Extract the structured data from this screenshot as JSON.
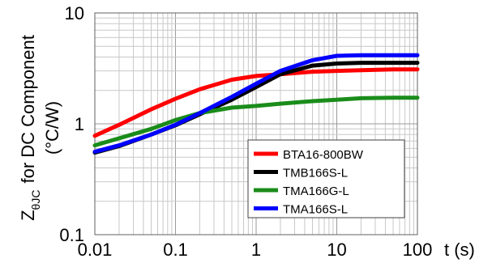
{
  "chart_data": {
    "type": "line",
    "x_scale": "log",
    "y_scale": "log",
    "xlim": [
      0.01,
      100
    ],
    "ylim": [
      0.1,
      10
    ],
    "grid": true,
    "legend_position": "bottom-right",
    "xlabel": "t (s)",
    "ylabel_main": "for DC Component",
    "ylabel_symbol": "Z",
    "ylabel_subscript": "θJC",
    "ylabel_unit": "(°C/W)",
    "x_tick_labels": [
      "0.01",
      "0.1",
      "1",
      "10",
      "100"
    ],
    "y_tick_labels": [
      "0.1",
      "1",
      "10"
    ],
    "series": [
      {
        "name": "BTA16-800BW",
        "color": "#ff0000",
        "x": [
          0.01,
          0.02,
          0.05,
          0.1,
          0.2,
          0.5,
          1,
          2,
          5,
          10,
          20,
          50,
          100
        ],
        "y": [
          0.78,
          0.98,
          1.35,
          1.68,
          2.05,
          2.5,
          2.7,
          2.8,
          2.95,
          3.0,
          3.05,
          3.1,
          3.1
        ]
      },
      {
        "name": "TMB166S-L",
        "color": "#000000",
        "x": [
          0.01,
          0.02,
          0.05,
          0.1,
          0.2,
          0.5,
          1,
          2,
          5,
          10,
          20,
          50,
          100
        ],
        "y": [
          0.55,
          0.63,
          0.8,
          0.97,
          1.22,
          1.65,
          2.15,
          2.8,
          3.35,
          3.5,
          3.55,
          3.55,
          3.55
        ]
      },
      {
        "name": "TMA166G-L",
        "color": "#1a8c1a",
        "x": [
          0.01,
          0.02,
          0.05,
          0.1,
          0.2,
          0.5,
          1,
          2,
          5,
          10,
          20,
          50,
          100
        ],
        "y": [
          0.64,
          0.74,
          0.9,
          1.08,
          1.25,
          1.4,
          1.45,
          1.52,
          1.6,
          1.65,
          1.7,
          1.72,
          1.72
        ]
      },
      {
        "name": "TMA166S-L",
        "color": "#0000ff",
        "x": [
          0.01,
          0.02,
          0.05,
          0.1,
          0.2,
          0.5,
          1,
          2,
          5,
          10,
          20,
          50,
          100
        ],
        "y": [
          0.56,
          0.64,
          0.8,
          0.98,
          1.25,
          1.75,
          2.3,
          3.0,
          3.75,
          4.1,
          4.15,
          4.15,
          4.15
        ]
      }
    ]
  }
}
